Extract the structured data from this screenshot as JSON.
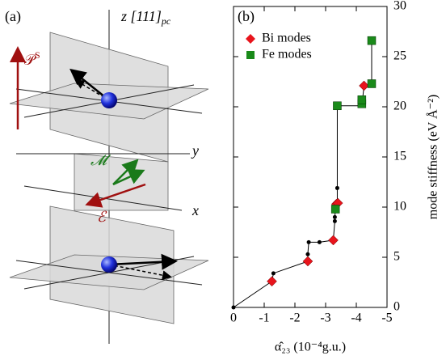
{
  "diagram": {
    "label": "(a)",
    "z_axis": "z [111]",
    "z_axis_sub": "pc",
    "y_axis": "y",
    "x_axis": "x",
    "polarization": "𝒫",
    "polarization_sup": "S",
    "magnetization": "𝓜",
    "field": "ℰ"
  },
  "chart_data": {
    "type": "line",
    "label": "(b)",
    "xlabel": "α̂₂₃ (10⁻⁴g.u.)",
    "ylabel": "mode stiffness (eV Å⁻²)",
    "xlim": [
      0,
      -5
    ],
    "xticks": [
      0,
      -1,
      -2,
      -3,
      -4,
      -5
    ],
    "ylim": [
      0,
      30
    ],
    "yticks": [
      0,
      5,
      10,
      15,
      20,
      25,
      30
    ],
    "legend": "upper left",
    "series": [
      {
        "color": "#000000",
        "marker": "dot",
        "x": [
          0,
          -1.25,
          -1.3,
          -2.42,
          -2.42,
          -2.45,
          -2.8,
          -3.25,
          -3.3,
          -3.3,
          -3.32,
          -3.35,
          -3.38,
          -3.38,
          -3.38,
          -4.2,
          -4.2,
          -4.25,
          -4.5,
          -4.5
        ],
        "values": [
          0,
          2.6,
          3.4,
          4.6,
          5.3,
          6.5,
          6.5,
          6.7,
          8.6,
          9.0,
          9.8,
          10.3,
          10.4,
          11.9,
          20.1,
          20.1,
          20.6,
          22.1,
          22.3,
          26.6
        ]
      },
      {
        "name": "Bi modes",
        "color": "#e8141c",
        "marker": "diamond",
        "x": [
          -1.25,
          -2.42,
          -3.25,
          -3.35,
          -3.4,
          -4.25
        ],
        "values": [
          2.6,
          4.6,
          6.7,
          10.3,
          10.4,
          22.1
        ]
      },
      {
        "name": "Fe modes",
        "color": "#1a8a1a",
        "marker": "square",
        "x": [
          -3.32,
          -3.38,
          -4.18,
          -4.18,
          -4.5,
          -4.5
        ],
        "values": [
          9.8,
          20.1,
          20.3,
          20.7,
          22.3,
          26.6
        ]
      }
    ]
  }
}
